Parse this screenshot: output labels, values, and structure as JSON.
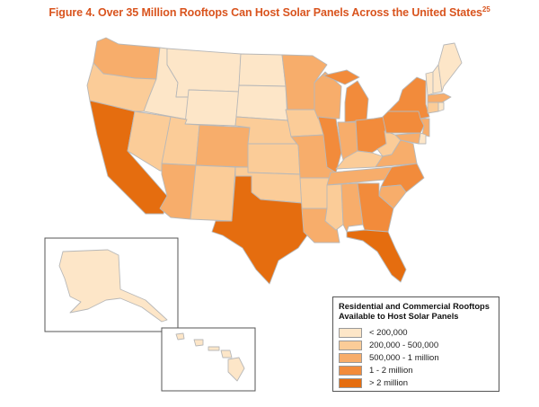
{
  "title": {
    "text": "Figure 4. Over 35 Million Rooftops Can Host Solar Panels Across the United States",
    "superscript": "25"
  },
  "legend": {
    "title_line1": "Residential and Commercial Rooftops",
    "title_line2": "Available to Host Solar Panels",
    "items": [
      {
        "label": "< 200,000",
        "color": "#fde6c8"
      },
      {
        "label": "200,000 - 500,000",
        "color": "#fbcc98"
      },
      {
        "label": "500,000 - 1 million",
        "color": "#f7ad6b"
      },
      {
        "label": "1 - 2 million",
        "color": "#f28b3b"
      },
      {
        "label": "> 2 million",
        "color": "#e56d0f"
      }
    ]
  },
  "states": {
    "WA": 2,
    "OR": 1,
    "CA": 4,
    "ID": 0,
    "NV": 1,
    "MT": 0,
    "WY": 0,
    "UT": 1,
    "AZ": 2,
    "CO": 2,
    "NM": 1,
    "ND": 0,
    "SD": 0,
    "NE": 1,
    "KS": 1,
    "OK": 1,
    "TX": 4,
    "MN": 2,
    "IA": 1,
    "MO": 2,
    "AR": 1,
    "LA": 2,
    "WI": 2,
    "IL": 3,
    "MS": 1,
    "MI": 3,
    "IN": 2,
    "KY": 1,
    "TN": 2,
    "AL": 2,
    "OH": 3,
    "WV": 1,
    "VA": 2,
    "NC": 3,
    "SC": 2,
    "GA": 3,
    "FL": 4,
    "PA": 3,
    "NY": 3,
    "VT": 0,
    "NH": 0,
    "ME": 0,
    "MA": 2,
    "CT": 1,
    "RI": 0,
    "NJ": 2,
    "DE": 0,
    "MD": 2,
    "AK": 0,
    "HI": 0
  }
}
